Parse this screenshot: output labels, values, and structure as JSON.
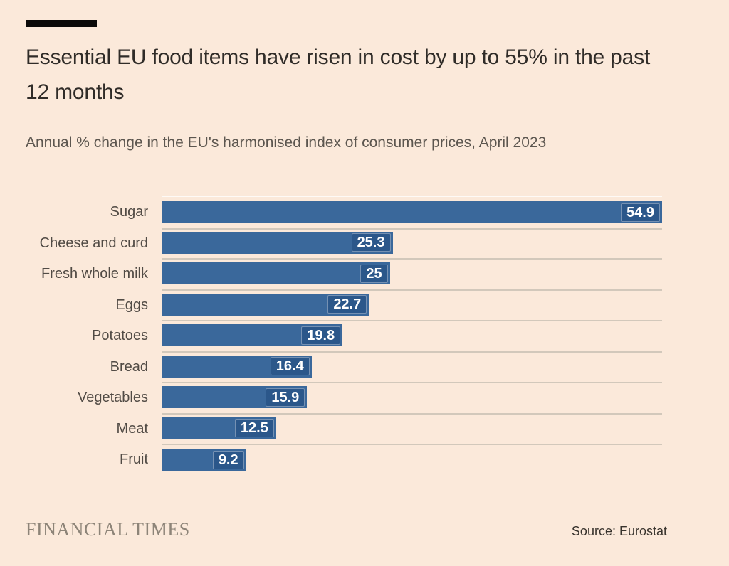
{
  "header": {
    "title": "Essential EU food items have risen in cost by up to 55% in the past 12 months",
    "subtitle": "Annual % change in the EU's harmonised index of consumer prices, April 2023"
  },
  "footer": {
    "brand": "FINANCIAL TIMES",
    "source": "Source: Eurostat"
  },
  "colors": {
    "background": "#FBE9DA",
    "bar": "#3A689B",
    "value_box": "#2B578A",
    "value_text": "#FFFFFF",
    "grid": "#D2C8BB",
    "title": "#302C28",
    "subtitle": "#5C564F",
    "label": "#514B45",
    "logo": "#8D8478",
    "source": "#38332D",
    "rule": "#0B0A09"
  },
  "chart_data": {
    "type": "bar",
    "orientation": "horizontal",
    "categories": [
      "Sugar",
      "Cheese and curd",
      "Fresh whole milk",
      "Eggs",
      "Potatoes",
      "Bread",
      "Vegetables",
      "Meat",
      "Fruit"
    ],
    "values": [
      54.9,
      25.3,
      25,
      22.7,
      19.8,
      16.4,
      15.9,
      12.5,
      9.2
    ],
    "value_labels": [
      "54.9",
      "25.3",
      "25",
      "22.7",
      "19.8",
      "16.4",
      "15.9",
      "12.5",
      "9.2"
    ],
    "title": "Essential EU food items have risen in cost by up to 55% in the past 12 months",
    "subtitle": "Annual % change in the EU's harmonised index of consumer prices, April 2023",
    "xlabel": "",
    "ylabel": "",
    "xlim": [
      0,
      54.9
    ],
    "grid": "row-separator-lines",
    "legend": "none",
    "value_label_position": "inside-end"
  }
}
